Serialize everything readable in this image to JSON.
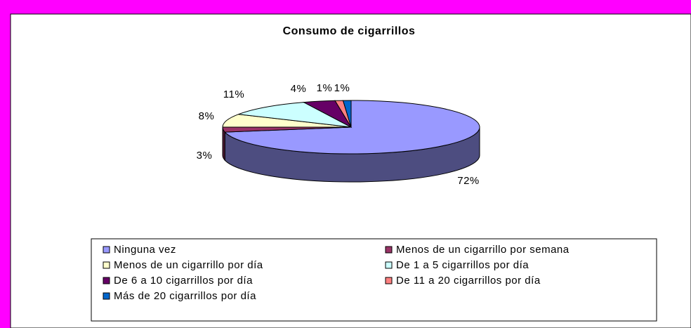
{
  "chart_data": {
    "type": "pie3d",
    "title": "Consumo de cigarrillos",
    "categories": [
      "Ninguna vez",
      "Menos de un cigarrillo por semana",
      "Menos de un cigarrillo por día",
      "De 1 a 5 cigarrillos por día",
      "De 6 a 10 cigarrillos por día",
      "De 11 a 20 cigarrillos por día",
      "Más de 20 cigarrillos por día"
    ],
    "values": [
      72,
      3,
      8,
      11,
      4,
      1,
      1
    ],
    "value_labels": [
      "72%",
      "3%",
      "8%",
      "11%",
      "4%",
      "1%",
      "1%"
    ],
    "colors": [
      "#9999ff",
      "#993366",
      "#ffffcc",
      "#ccffff",
      "#660066",
      "#ff8080",
      "#0066cc"
    ],
    "legend": "bottom"
  }
}
